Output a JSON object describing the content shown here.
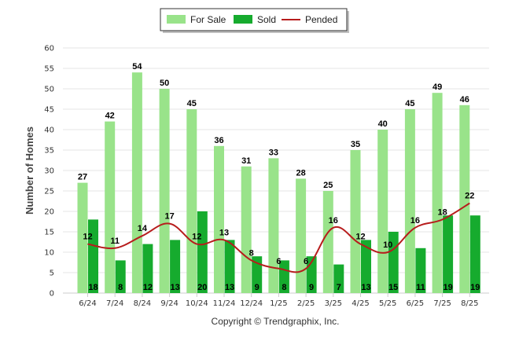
{
  "chart_data": {
    "type": "bar",
    "title": "",
    "xlabel": "",
    "ylabel": "Number of Homes",
    "ylim": [
      0,
      60
    ],
    "ytick_step": 5,
    "grid": true,
    "legend_position": "top-center",
    "categories": [
      "6/24",
      "7/24",
      "8/24",
      "9/24",
      "10/24",
      "11/24",
      "12/24",
      "1/25",
      "2/25",
      "3/25",
      "4/25",
      "5/25",
      "6/25",
      "7/25",
      "8/25"
    ],
    "series": [
      {
        "name": "For Sale",
        "kind": "bar",
        "color": "#99e38a",
        "values": [
          27,
          42,
          54,
          50,
          45,
          36,
          31,
          33,
          28,
          25,
          35,
          40,
          45,
          49,
          46
        ]
      },
      {
        "name": "Sold",
        "kind": "bar",
        "color": "#16ab2e",
        "values": [
          18,
          8,
          12,
          13,
          20,
          13,
          9,
          8,
          9,
          7,
          13,
          15,
          11,
          19,
          19
        ]
      },
      {
        "name": "Pended",
        "kind": "line",
        "color": "#b71c1c",
        "values": [
          12,
          11,
          14,
          17,
          12,
          13,
          8,
          6,
          6,
          16,
          12,
          10,
          16,
          18,
          22
        ]
      }
    ]
  },
  "footer": {
    "copyright": "Copyright © Trendgraphix, Inc."
  }
}
